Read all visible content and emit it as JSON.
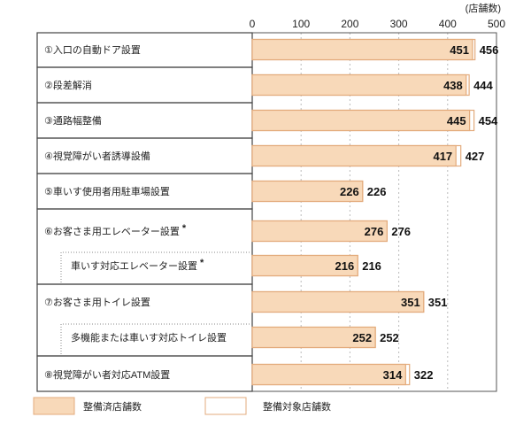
{
  "chart_data": {
    "type": "bar",
    "orientation": "horizontal",
    "unit_label": "(店舗数)",
    "xlim": [
      0,
      500
    ],
    "xticks": [
      0,
      100,
      200,
      300,
      400,
      500
    ],
    "grid": true,
    "categories": [
      "①入口の自動ドア設置",
      "②段差解消",
      "③通路幅整備",
      "④視覚障がい者誘導設備",
      "⑤車いす使用者用駐車場設置",
      "⑥お客さま用エレベーター設置",
      "車いす対応エレベーター設置",
      "⑦お客さま用トイレ設置",
      "多機能または車いす対応トイレ設置",
      "⑧視覚障がい者対応ATM設置"
    ],
    "asterisk": [
      false,
      false,
      false,
      false,
      false,
      true,
      true,
      false,
      false,
      false
    ],
    "sub_item": [
      false,
      false,
      false,
      false,
      false,
      false,
      true,
      false,
      true,
      false
    ],
    "series": [
      {
        "name": "整備対象店舗数",
        "values": [
          456,
          444,
          454,
          427,
          226,
          276,
          216,
          351,
          252,
          322
        ],
        "color": "#ffffff"
      },
      {
        "name": "整備済店舗数",
        "values": [
          451,
          438,
          445,
          417,
          226,
          276,
          216,
          351,
          252,
          314
        ],
        "color": "#f8d9b9"
      }
    ],
    "border_color": "#e3ab7c",
    "legend": [
      "整備済店舗数",
      "整備対象店舗数"
    ],
    "legend_position": "bottom-left"
  }
}
